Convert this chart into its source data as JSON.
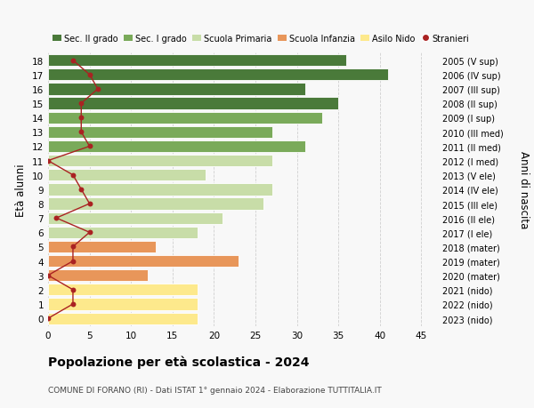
{
  "ages": [
    0,
    1,
    2,
    3,
    4,
    5,
    6,
    7,
    8,
    9,
    10,
    11,
    12,
    13,
    14,
    15,
    16,
    17,
    18
  ],
  "bar_values": [
    18,
    18,
    18,
    12,
    23,
    13,
    18,
    21,
    26,
    27,
    19,
    27,
    31,
    27,
    33,
    35,
    31,
    41,
    36
  ],
  "stranieri": [
    0,
    3,
    3,
    0,
    3,
    3,
    5,
    1,
    5,
    4,
    3,
    0,
    5,
    4,
    4,
    4,
    6,
    5,
    3
  ],
  "bar_colors": [
    "#fde98c",
    "#fde98c",
    "#fde98c",
    "#e8965a",
    "#e8965a",
    "#e8965a",
    "#c8dda8",
    "#c8dda8",
    "#c8dda8",
    "#c8dda8",
    "#c8dda8",
    "#c8dda8",
    "#7aaa5a",
    "#7aaa5a",
    "#7aaa5a",
    "#4a7a3a",
    "#4a7a3a",
    "#4a7a3a",
    "#4a7a3a"
  ],
  "right_labels": [
    "2023 (nido)",
    "2022 (nido)",
    "2021 (nido)",
    "2020 (mater)",
    "2019 (mater)",
    "2018 (mater)",
    "2017 (I ele)",
    "2016 (II ele)",
    "2015 (III ele)",
    "2014 (IV ele)",
    "2013 (V ele)",
    "2012 (I med)",
    "2011 (II med)",
    "2010 (III med)",
    "2009 (I sup)",
    "2008 (II sup)",
    "2007 (III sup)",
    "2006 (IV sup)",
    "2005 (V sup)"
  ],
  "legend_labels": [
    "Sec. II grado",
    "Sec. I grado",
    "Scuola Primaria",
    "Scuola Infanzia",
    "Asilo Nido",
    "Stranieri"
  ],
  "legend_colors": [
    "#4a7a3a",
    "#7aaa5a",
    "#c8dda8",
    "#e8965a",
    "#fde98c",
    "#aa2222"
  ],
  "title": "Popolazione per età scolastica - 2024",
  "subtitle": "COMUNE DI FORANO (RI) - Dati ISTAT 1° gennaio 2024 - Elaborazione TUTTITALIA.IT",
  "ylabel": "Età alunni",
  "ylabel_right": "Anni di nascita",
  "xlim": [
    0,
    47
  ],
  "ylim": [
    -0.55,
    18.55
  ],
  "background_color": "#f8f8f8",
  "grid_color": "#cccccc",
  "stranieri_color": "#aa2222",
  "bar_height": 0.82
}
